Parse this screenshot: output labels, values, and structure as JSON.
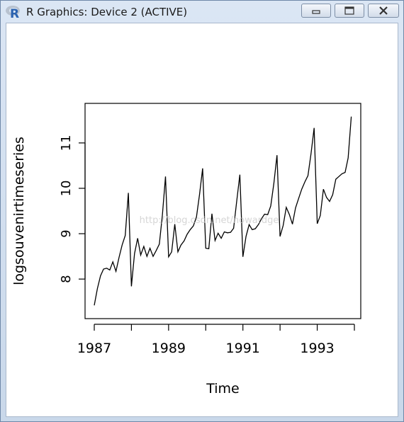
{
  "window": {
    "title": "R Graphics: Device 2 (ACTIVE)",
    "icon": "r-logo-icon",
    "controls": [
      "minimize-icon",
      "maximize-icon",
      "close-icon"
    ],
    "logo_letter": "R"
  },
  "watermark": "http://blog.csdn.net/howardge",
  "chart_data": {
    "type": "line",
    "title": "",
    "xlabel": "Time",
    "ylabel": "logsouvenirtimeseries",
    "xlim": [
      1987,
      1994
    ],
    "ylim": [
      7.3,
      11.7
    ],
    "xticks": [
      1987,
      1989,
      1991,
      1993
    ],
    "xticks_minor": [
      1988,
      1990,
      1992,
      1994
    ],
    "yticks": [
      8,
      9,
      10,
      11
    ],
    "grid": false,
    "color": "#000000",
    "series": [
      {
        "x": [
          1987.0,
          1987.083,
          1987.167,
          1987.25,
          1987.333,
          1987.417,
          1987.5,
          1987.583,
          1987.667,
          1987.75,
          1987.833,
          1987.917,
          1988.0,
          1988.083,
          1988.167,
          1988.25,
          1988.333,
          1988.417,
          1988.5,
          1988.583,
          1988.667,
          1988.75,
          1988.833,
          1988.917,
          1989.0,
          1989.083,
          1989.167,
          1989.25,
          1989.333,
          1989.417,
          1989.5,
          1989.583,
          1989.667,
          1989.75,
          1989.833,
          1989.917,
          1990.0,
          1990.083,
          1990.167,
          1990.25,
          1990.333,
          1990.417,
          1990.5,
          1990.583,
          1990.667,
          1990.75,
          1990.833,
          1990.917,
          1991.0,
          1991.083,
          1991.167,
          1991.25,
          1991.333,
          1991.417,
          1991.5,
          1991.583,
          1991.667,
          1991.75,
          1991.833,
          1991.917,
          1992.0,
          1992.083,
          1992.167,
          1992.25,
          1992.333,
          1992.417,
          1992.5,
          1992.583,
          1992.667,
          1992.75,
          1992.833,
          1992.917,
          1993.0,
          1993.083,
          1993.167,
          1993.25,
          1993.333,
          1993.417,
          1993.5,
          1993.583,
          1993.667,
          1993.75,
          1993.833,
          1993.917
        ],
        "values": [
          7.42,
          7.79,
          8.07,
          8.22,
          8.24,
          8.2,
          8.38,
          8.17,
          8.48,
          8.75,
          8.96,
          9.9,
          7.84,
          8.56,
          8.9,
          8.53,
          8.72,
          8.5,
          8.68,
          8.5,
          8.63,
          8.77,
          9.41,
          10.26,
          8.49,
          8.6,
          9.21,
          8.6,
          8.75,
          8.84,
          8.99,
          9.09,
          9.17,
          9.37,
          9.86,
          10.44,
          8.68,
          8.67,
          9.44,
          8.85,
          9.01,
          8.9,
          9.04,
          9.02,
          9.03,
          9.12,
          9.72,
          10.3,
          8.49,
          8.94,
          9.2,
          9.09,
          9.11,
          9.2,
          9.33,
          9.43,
          9.42,
          9.61,
          10.11,
          10.73,
          8.94,
          9.18,
          9.58,
          9.42,
          9.21,
          9.57,
          9.78,
          9.98,
          10.14,
          10.28,
          10.76,
          11.33,
          9.22,
          9.4,
          9.98,
          9.8,
          9.71,
          9.86,
          10.2,
          10.26,
          10.32,
          10.35,
          10.67,
          11.58
        ]
      }
    ]
  }
}
